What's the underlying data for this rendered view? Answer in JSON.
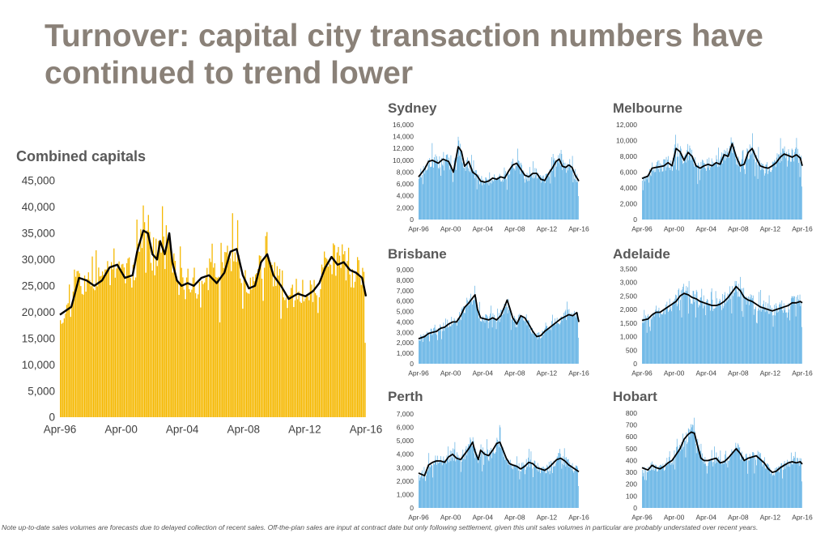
{
  "page_title": "Turnover: capital city transaction numbers have continued to trend lower",
  "footnote": "Note up-to-date sales volumes are forecasts due to delayed collection of recent sales.  Off-the-plan sales are input at contract date but only following settlement, given this unit sales volumes in particular are probably understated over recent years.",
  "colors": {
    "title": "#8a8178",
    "main_bars": "#f5b800",
    "panel_bars": "#5aaee3",
    "trend_line": "#000000"
  },
  "chart_data": [
    {
      "id": "combined",
      "type": "bar",
      "title": "Combined capitals",
      "x_start": 1996.25,
      "x_end": 2016.25,
      "x_tick_labels": [
        "Apr-96",
        "Apr-00",
        "Apr-04",
        "Apr-08",
        "Apr-12",
        "Apr-16"
      ],
      "x_tick_values": [
        1996.25,
        2000.25,
        2004.25,
        2008.25,
        2012.25,
        2016.25
      ],
      "ylim": [
        0,
        45000
      ],
      "y_tick_labels": [
        "0",
        "5,000",
        "10,000",
        "15,000",
        "20,000",
        "25,000",
        "30,000",
        "35,000",
        "40,000",
        "45,000"
      ],
      "y_tick_values": [
        0,
        5000,
        10000,
        15000,
        20000,
        25000,
        30000,
        35000,
        40000,
        45000
      ],
      "series": [
        {
          "name": "Monthly sales",
          "kind": "bar"
        },
        {
          "name": "Trend",
          "kind": "line",
          "x": [
            1996.25,
            1997.0,
            1997.5,
            1998.0,
            1998.5,
            1999.0,
            1999.5,
            2000.0,
            2000.5,
            2001.0,
            2001.3,
            2001.7,
            2002.0,
            2002.3,
            2002.6,
            2002.8,
            2003.1,
            2003.4,
            2003.6,
            2003.9,
            2004.2,
            2004.6,
            2005.0,
            2005.5,
            2006.0,
            2006.5,
            2007.0,
            2007.4,
            2007.8,
            2008.2,
            2008.6,
            2009.0,
            2009.4,
            2009.8,
            2010.2,
            2010.7,
            2011.2,
            2011.8,
            2012.3,
            2012.8,
            2013.2,
            2013.6,
            2014.0,
            2014.4,
            2014.8,
            2015.2,
            2015.6,
            2016.0,
            2016.25
          ],
          "y": [
            19500,
            21000,
            26500,
            26000,
            25000,
            26000,
            28500,
            29000,
            26500,
            27000,
            31500,
            35500,
            35000,
            31000,
            30000,
            33500,
            31000,
            35000,
            29500,
            26000,
            25000,
            25500,
            25000,
            26500,
            27000,
            25500,
            27500,
            31500,
            32000,
            27000,
            24500,
            25000,
            29500,
            31000,
            27000,
            25000,
            22500,
            23500,
            23000,
            24000,
            25500,
            28500,
            30500,
            29000,
            29500,
            28000,
            27500,
            26500,
            23000
          ]
        }
      ]
    },
    {
      "id": "sydney",
      "type": "bar",
      "title": "Sydney",
      "x_start": 1996.25,
      "x_end": 2016.25,
      "x_tick_labels": [
        "Apr-96",
        "Apr-00",
        "Apr-04",
        "Apr-08",
        "Apr-12",
        "Apr-16"
      ],
      "x_tick_values": [
        1996.25,
        2000.25,
        2004.25,
        2008.25,
        2012.25,
        2016.25
      ],
      "ylim": [
        0,
        16000
      ],
      "y_tick_labels": [
        "0",
        "2,000",
        "4,000",
        "6,000",
        "8,000",
        "10,000",
        "12,000",
        "14,000",
        "16,000"
      ],
      "y_tick_values": [
        0,
        2000,
        4000,
        6000,
        8000,
        10000,
        12000,
        14000,
        16000
      ],
      "series": [
        {
          "name": "Monthly sales",
          "kind": "bar"
        },
        {
          "name": "Trend",
          "kind": "line",
          "x": [
            1996.25,
            1997.0,
            1997.5,
            1998.0,
            1998.7,
            1999.3,
            2000.0,
            2000.6,
            2001.2,
            2001.6,
            2002.0,
            2002.5,
            2003.0,
            2003.5,
            2004.0,
            2004.5,
            2005.0,
            2005.5,
            2006.0,
            2006.5,
            2007.0,
            2007.5,
            2008.0,
            2008.5,
            2009.0,
            2009.5,
            2010.0,
            2010.5,
            2011.0,
            2011.5,
            2012.0,
            2012.5,
            2013.0,
            2013.4,
            2013.8,
            2014.2,
            2014.6,
            2015.0,
            2015.4,
            2015.8,
            2016.25
          ],
          "y": [
            7200,
            8500,
            9800,
            10000,
            9500,
            10200,
            9800,
            8000,
            12300,
            11500,
            9000,
            9800,
            8000,
            7500,
            6500,
            6300,
            6500,
            7000,
            6800,
            7200,
            7000,
            8200,
            9200,
            9500,
            8500,
            7500,
            7200,
            7800,
            7800,
            6800,
            6600,
            7800,
            8800,
            9800,
            10200,
            9000,
            8800,
            9200,
            8800,
            7500,
            6500
          ]
        }
      ]
    },
    {
      "id": "melbourne",
      "type": "bar",
      "title": "Melbourne",
      "x_start": 1996.25,
      "x_end": 2016.25,
      "x_tick_labels": [
        "Apr-96",
        "Apr-00",
        "Apr-04",
        "Apr-08",
        "Apr-12",
        "Apr-16"
      ],
      "x_tick_values": [
        1996.25,
        2000.25,
        2004.25,
        2008.25,
        2012.25,
        2016.25
      ],
      "ylim": [
        0,
        12000
      ],
      "y_tick_labels": [
        "0",
        "2,000",
        "4,000",
        "6,000",
        "8,000",
        "10,000",
        "12,000"
      ],
      "y_tick_values": [
        0,
        2000,
        4000,
        6000,
        8000,
        10000,
        12000
      ],
      "series": [
        {
          "name": "Monthly sales",
          "kind": "bar"
        },
        {
          "name": "Trend",
          "kind": "line",
          "x": [
            1996.25,
            1997.0,
            1997.5,
            1998.0,
            1998.5,
            1999.0,
            1999.5,
            2000.0,
            2000.5,
            2001.0,
            2001.5,
            2002.0,
            2002.5,
            2003.0,
            2003.5,
            2004.0,
            2004.5,
            2005.0,
            2005.5,
            2006.0,
            2006.5,
            2007.0,
            2007.5,
            2008.0,
            2008.5,
            2009.0,
            2009.5,
            2010.0,
            2010.5,
            2011.0,
            2011.5,
            2012.0,
            2012.5,
            2013.0,
            2013.5,
            2014.0,
            2014.5,
            2015.0,
            2015.5,
            2016.0,
            2016.25
          ],
          "y": [
            5200,
            5500,
            6500,
            6600,
            6700,
            6800,
            7200,
            6800,
            9000,
            8600,
            7500,
            8500,
            8000,
            6800,
            6500,
            6800,
            7000,
            6800,
            7200,
            7000,
            8200,
            8000,
            9600,
            8000,
            6800,
            7000,
            8500,
            9000,
            7800,
            6800,
            6600,
            6500,
            6800,
            7200,
            7900,
            8300,
            8100,
            7900,
            8200,
            7800,
            6800
          ]
        }
      ]
    },
    {
      "id": "brisbane",
      "type": "bar",
      "title": "Brisbane",
      "x_start": 1996.25,
      "x_end": 2016.25,
      "x_tick_labels": [
        "Apr-96",
        "Apr-00",
        "Apr-04",
        "Apr-08",
        "Apr-12",
        "Apr-16"
      ],
      "x_tick_values": [
        1996.25,
        2000.25,
        2004.25,
        2008.25,
        2012.25,
        2016.25
      ],
      "ylim": [
        0,
        9000
      ],
      "y_tick_labels": [
        "0",
        "1,000",
        "2,000",
        "3,000",
        "4,000",
        "5,000",
        "6,000",
        "7,000",
        "8,000",
        "9,000"
      ],
      "y_tick_values": [
        0,
        1000,
        2000,
        3000,
        4000,
        5000,
        6000,
        7000,
        8000,
        9000
      ],
      "series": [
        {
          "name": "Monthly sales",
          "kind": "bar"
        },
        {
          "name": "Trend",
          "kind": "line",
          "x": [
            1996.25,
            1997.0,
            1997.5,
            1998.0,
            1998.5,
            1999.0,
            1999.5,
            2000.0,
            2000.5,
            2001.0,
            2001.5,
            2002.0,
            2002.5,
            2003.0,
            2003.3,
            2003.6,
            2004.0,
            2004.5,
            2005.0,
            2005.5,
            2006.0,
            2006.5,
            2007.0,
            2007.3,
            2007.6,
            2008.0,
            2008.5,
            2009.0,
            2009.5,
            2010.0,
            2010.5,
            2011.0,
            2011.5,
            2012.0,
            2012.5,
            2013.0,
            2013.5,
            2014.0,
            2014.5,
            2015.0,
            2015.5,
            2016.0,
            2016.25
          ],
          "y": [
            2400,
            2600,
            2900,
            3000,
            3100,
            3400,
            3500,
            3800,
            4000,
            4000,
            4600,
            5400,
            5800,
            6300,
            6600,
            5200,
            4400,
            4300,
            4200,
            4400,
            4200,
            4600,
            5500,
            6100,
            5400,
            4400,
            3800,
            4600,
            4400,
            3800,
            3100,
            2600,
            2700,
            3100,
            3400,
            3700,
            4000,
            4300,
            4500,
            4700,
            4600,
            4900,
            4000
          ]
        }
      ]
    },
    {
      "id": "adelaide",
      "type": "bar",
      "title": "Adelaide",
      "x_start": 1996.25,
      "x_end": 2016.25,
      "x_tick_labels": [
        "Apr-96",
        "Apr-00",
        "Apr-04",
        "Apr-08",
        "Apr-12",
        "Apr-16"
      ],
      "x_tick_values": [
        1996.25,
        2000.25,
        2004.25,
        2008.25,
        2012.25,
        2016.25
      ],
      "ylim": [
        0,
        3500
      ],
      "y_tick_labels": [
        "0",
        "500",
        "1,000",
        "1,500",
        "2,000",
        "2,500",
        "3,000",
        "3,500"
      ],
      "y_tick_values": [
        0,
        500,
        1000,
        1500,
        2000,
        2500,
        3000,
        3500
      ],
      "series": [
        {
          "name": "Monthly sales",
          "kind": "bar"
        },
        {
          "name": "Trend",
          "kind": "line",
          "x": [
            1996.25,
            1997.0,
            1997.5,
            1998.0,
            1998.5,
            1999.0,
            1999.5,
            2000.0,
            2000.5,
            2001.0,
            2001.5,
            2002.0,
            2002.5,
            2003.0,
            2003.5,
            2004.0,
            2004.5,
            2005.0,
            2005.5,
            2006.0,
            2006.5,
            2007.0,
            2007.5,
            2008.0,
            2008.5,
            2009.0,
            2009.5,
            2010.0,
            2010.5,
            2011.0,
            2011.5,
            2012.0,
            2012.5,
            2013.0,
            2013.5,
            2014.0,
            2014.5,
            2015.0,
            2015.5,
            2016.0,
            2016.25
          ],
          "y": [
            1600,
            1650,
            1800,
            1900,
            1900,
            2000,
            2100,
            2200,
            2300,
            2500,
            2600,
            2550,
            2450,
            2400,
            2300,
            2250,
            2200,
            2150,
            2150,
            2200,
            2300,
            2450,
            2650,
            2850,
            2700,
            2450,
            2350,
            2300,
            2200,
            2100,
            2050,
            2000,
            1950,
            2000,
            2050,
            2100,
            2150,
            2250,
            2250,
            2300,
            2250
          ]
        }
      ]
    },
    {
      "id": "perth",
      "type": "bar",
      "title": "Perth",
      "x_start": 1996.25,
      "x_end": 2016.25,
      "x_tick_labels": [
        "Apr-96",
        "Apr-00",
        "Apr-04",
        "Apr-08",
        "Apr-12",
        "Apr-16"
      ],
      "x_tick_values": [
        1996.25,
        2000.25,
        2004.25,
        2008.25,
        2012.25,
        2016.25
      ],
      "ylim": [
        0,
        7000
      ],
      "y_tick_labels": [
        "0",
        "1,000",
        "2,000",
        "3,000",
        "4,000",
        "5,000",
        "6,000",
        "7,000"
      ],
      "y_tick_values": [
        0,
        1000,
        2000,
        3000,
        4000,
        5000,
        6000,
        7000
      ],
      "series": [
        {
          "name": "Monthly sales",
          "kind": "bar"
        },
        {
          "name": "Trend",
          "kind": "line",
          "x": [
            1996.25,
            1997.0,
            1997.5,
            1998.0,
            1998.5,
            1999.0,
            1999.5,
            2000.0,
            2000.5,
            2001.0,
            2001.5,
            2002.0,
            2002.5,
            2003.0,
            2003.3,
            2003.7,
            2004.0,
            2004.5,
            2005.0,
            2005.5,
            2006.0,
            2006.4,
            2006.8,
            2007.2,
            2007.6,
            2008.0,
            2008.5,
            2009.0,
            2009.5,
            2010.0,
            2010.5,
            2011.0,
            2011.5,
            2012.0,
            2012.5,
            2013.0,
            2013.5,
            2014.0,
            2014.5,
            2015.0,
            2015.5,
            2016.0,
            2016.25
          ],
          "y": [
            2600,
            2400,
            3200,
            3400,
            3500,
            3500,
            3400,
            3800,
            4000,
            3700,
            3600,
            4000,
            4400,
            4900,
            4200,
            3600,
            4300,
            4000,
            3900,
            4300,
            4800,
            4900,
            4300,
            3700,
            3300,
            3200,
            3100,
            2900,
            3100,
            3400,
            3300,
            3000,
            2900,
            2800,
            3000,
            3300,
            3600,
            3700,
            3500,
            3200,
            3000,
            2800,
            2700
          ]
        }
      ]
    },
    {
      "id": "hobart",
      "type": "bar",
      "title": "Hobart",
      "x_start": 1996.25,
      "x_end": 2016.25,
      "x_tick_labels": [
        "Apr-96",
        "Apr-00",
        "Apr-04",
        "Apr-08",
        "Apr-12",
        "Apr-16"
      ],
      "x_tick_values": [
        1996.25,
        2000.25,
        2004.25,
        2008.25,
        2012.25,
        2016.25
      ],
      "ylim": [
        0,
        800
      ],
      "y_tick_labels": [
        "0",
        "100",
        "200",
        "300",
        "400",
        "500",
        "600",
        "700",
        "800"
      ],
      "y_tick_values": [
        0,
        100,
        200,
        300,
        400,
        500,
        600,
        700,
        800
      ],
      "series": [
        {
          "name": "Monthly sales",
          "kind": "bar"
        },
        {
          "name": "Trend",
          "kind": "line",
          "x": [
            1996.25,
            1997.0,
            1997.5,
            1998.0,
            1998.5,
            1999.0,
            1999.5,
            2000.0,
            2000.5,
            2001.0,
            2001.5,
            2002.0,
            2002.4,
            2002.8,
            2003.2,
            2003.6,
            2004.0,
            2004.5,
            2005.0,
            2005.5,
            2006.0,
            2006.5,
            2007.0,
            2007.5,
            2008.0,
            2008.5,
            2009.0,
            2009.5,
            2010.0,
            2010.5,
            2011.0,
            2011.5,
            2012.0,
            2012.5,
            2013.0,
            2013.5,
            2014.0,
            2014.5,
            2015.0,
            2015.5,
            2016.0,
            2016.25
          ],
          "y": [
            340,
            320,
            360,
            340,
            330,
            350,
            380,
            400,
            450,
            500,
            580,
            620,
            640,
            630,
            520,
            420,
            400,
            400,
            410,
            420,
            380,
            390,
            420,
            460,
            500,
            460,
            400,
            420,
            430,
            440,
            410,
            380,
            330,
            300,
            310,
            340,
            360,
            380,
            390,
            380,
            390,
            370
          ]
        }
      ]
    }
  ]
}
